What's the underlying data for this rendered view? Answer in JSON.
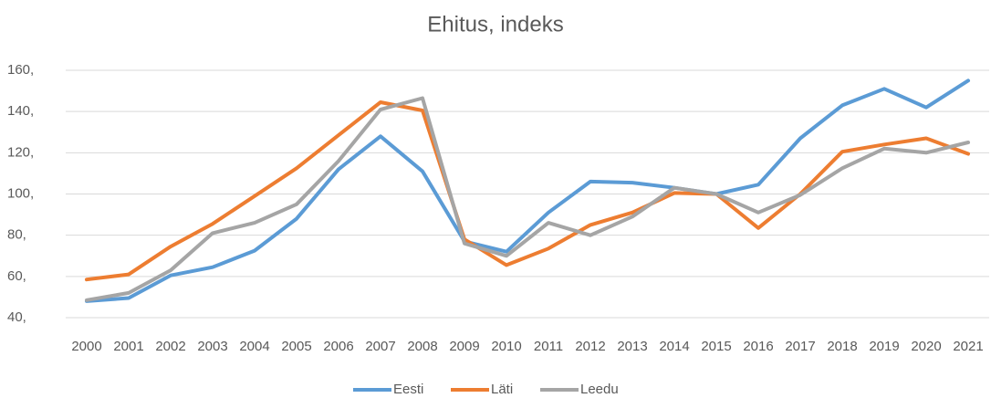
{
  "chart_data": {
    "type": "line",
    "title": "Ehitus, indeks",
    "categories": [
      "2000",
      "2001",
      "2002",
      "2003",
      "2004",
      "2005",
      "2006",
      "2007",
      "2008",
      "2009",
      "2010",
      "2011",
      "2012",
      "2013",
      "2014",
      "2015",
      "2016",
      "2017",
      "2018",
      "2019",
      "2020",
      "2021"
    ],
    "series": [
      {
        "name": "Eesti",
        "color": "#5b9bd5",
        "values": [
          48,
          49.5,
          60.5,
          64.5,
          72.5,
          88,
          112,
          128,
          111,
          77,
          72,
          91,
          106,
          105.5,
          103,
          100,
          104.5,
          127,
          143,
          151,
          142,
          155
        ]
      },
      {
        "name": "Läti",
        "color": "#ed7d31",
        "values": [
          58.5,
          61,
          74.5,
          85.5,
          99,
          112.5,
          128.5,
          144.5,
          140.5,
          78,
          65.5,
          73.5,
          85,
          91,
          100.5,
          100,
          83.5,
          100,
          120.5,
          124,
          127,
          119.5
        ]
      },
      {
        "name": "Leedu",
        "color": "#a5a5a5",
        "values": [
          48.5,
          52,
          63,
          81,
          86,
          95,
          116,
          141,
          146.5,
          76,
          70,
          86,
          80,
          89,
          103,
          100,
          91,
          99.5,
          112.5,
          122,
          120,
          125
        ]
      }
    ],
    "ylim": [
      40,
      160
    ],
    "yticks": [
      {
        "value": 40,
        "label": "40,"
      },
      {
        "value": 60,
        "label": "60,"
      },
      {
        "value": 80,
        "label": "80,"
      },
      {
        "value": 100,
        "label": "100,"
      },
      {
        "value": 120,
        "label": "120,"
      },
      {
        "value": 140,
        "label": "140,"
      },
      {
        "value": 160,
        "label": "160,"
      }
    ],
    "grid": true,
    "legend": "bottom"
  }
}
